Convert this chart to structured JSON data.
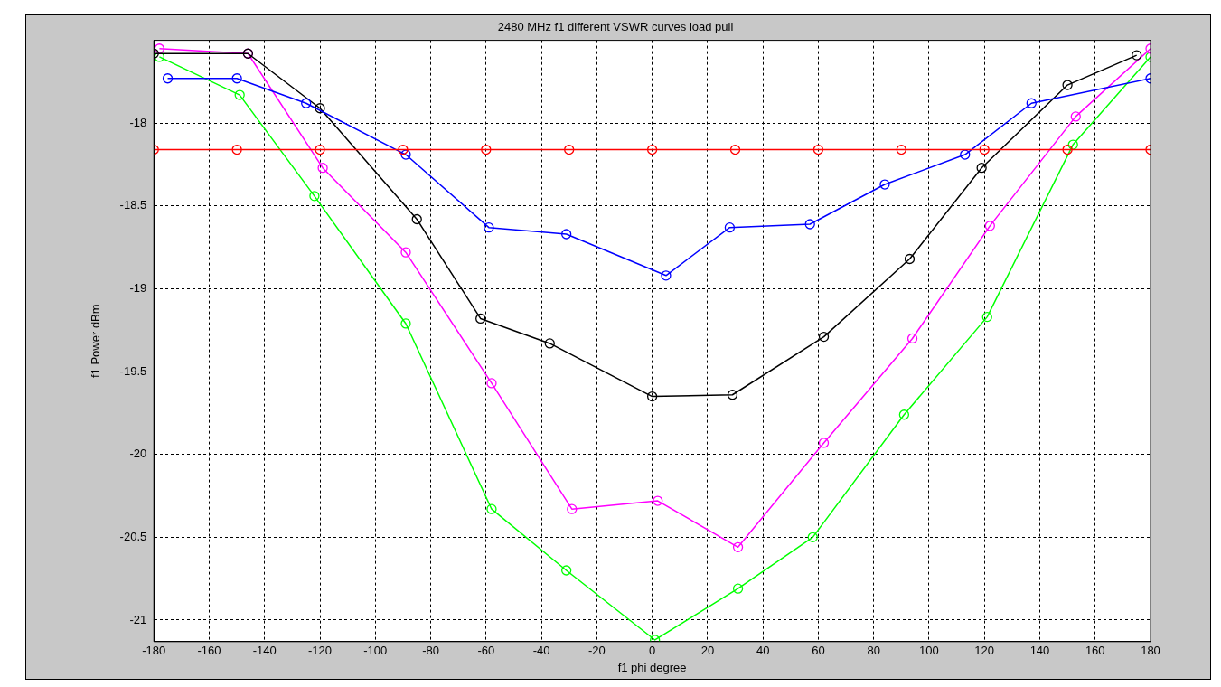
{
  "chart_data": {
    "type": "line",
    "title": "2480 MHz f1 different VSWR curves load pull",
    "xlabel": "f1 phi degree",
    "ylabel": "f1 Power dBm",
    "xlim": [
      -180,
      180
    ],
    "xticks": [
      -180,
      -160,
      -140,
      -120,
      -100,
      -80,
      -60,
      -40,
      -20,
      0,
      20,
      40,
      60,
      80,
      100,
      120,
      140,
      160,
      180
    ],
    "ylim": [
      -21.13,
      -17.5
    ],
    "yticks": [
      -21,
      -20.5,
      -20,
      -19.5,
      -19,
      -18.5,
      -18
    ],
    "grid": true,
    "marker": "circle",
    "line_style": "solid",
    "series": [
      {
        "color": "#ff0000",
        "x": [
          -180,
          -150,
          -120,
          -90,
          -60,
          -30,
          0,
          30,
          60,
          90,
          120,
          150,
          180
        ],
        "values": [
          -18.16,
          -18.16,
          -18.16,
          -18.16,
          -18.16,
          -18.16,
          -18.16,
          -18.16,
          -18.16,
          -18.16,
          -18.16,
          -18.16,
          -18.16
        ]
      },
      {
        "color": "#0000ff",
        "x": [
          -175,
          -150,
          -125,
          -89,
          -59,
          -31,
          5,
          28,
          57,
          84,
          113,
          137,
          180
        ],
        "values": [
          -17.73,
          -17.73,
          -17.88,
          -18.19,
          -18.63,
          -18.67,
          -18.92,
          -18.63,
          -18.61,
          -18.37,
          -18.19,
          -17.88,
          -17.73
        ]
      },
      {
        "color": "#000000",
        "x": [
          -180,
          -146,
          -120,
          -85,
          -62,
          -37,
          0,
          29,
          62,
          93,
          119,
          150,
          175
        ],
        "values": [
          -17.58,
          -17.58,
          -17.91,
          -18.58,
          -19.18,
          -19.33,
          -19.65,
          -19.64,
          -19.29,
          -18.82,
          -18.27,
          -17.77,
          -17.59
        ]
      },
      {
        "color": "#ff00ff",
        "x": [
          -178,
          -146,
          -119,
          -89,
          -58,
          -29,
          2,
          31,
          62,
          94,
          122,
          153,
          180
        ],
        "values": [
          -17.55,
          -17.58,
          -18.27,
          -18.78,
          -19.57,
          -20.33,
          -20.28,
          -20.56,
          -19.93,
          -19.3,
          -18.62,
          -17.96,
          -17.55
        ]
      },
      {
        "color": "#00ff00",
        "x": [
          -178,
          -149,
          -122,
          -89,
          -58,
          -31,
          1,
          31,
          58,
          91,
          121,
          152,
          180
        ],
        "values": [
          -17.6,
          -17.83,
          -18.44,
          -19.21,
          -20.33,
          -20.7,
          -21.12,
          -20.81,
          -20.5,
          -19.76,
          -19.17,
          -18.13,
          -17.6
        ]
      }
    ]
  }
}
